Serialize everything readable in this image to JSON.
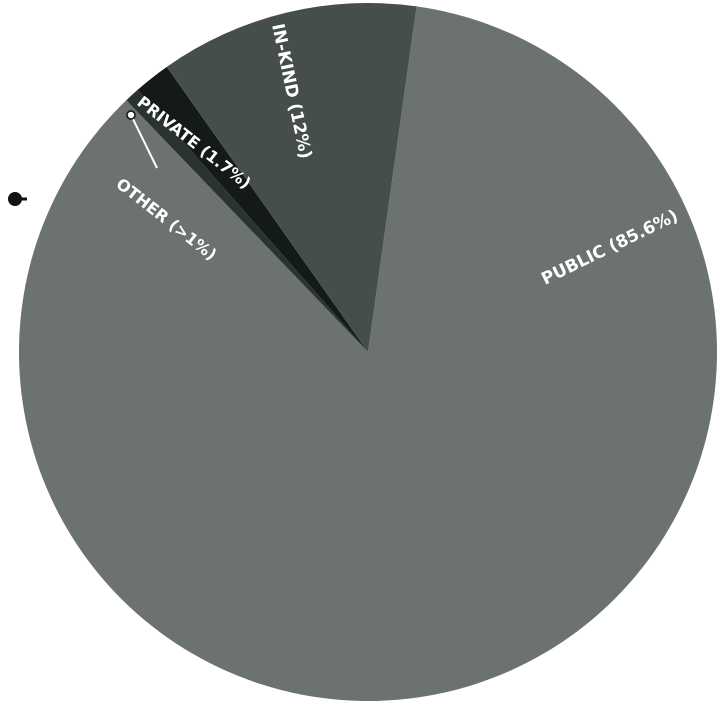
{
  "chart_data": {
    "type": "pie",
    "title": "",
    "slices": [
      {
        "label": "PUBLIC (85.6%)",
        "value": 85.6,
        "color": "#6b7271"
      },
      {
        "label": "OTHER (>1%)",
        "value": 0.7,
        "color": "#2a3330"
      },
      {
        "label": "PRIVATE (1.7%)",
        "value": 1.7,
        "color": "#141a15"
      },
      {
        "label": "IN-KIND (12%)",
        "value": 12.0,
        "color": "#464e4b"
      }
    ],
    "legend": "none",
    "annotation_color": "#111111"
  }
}
